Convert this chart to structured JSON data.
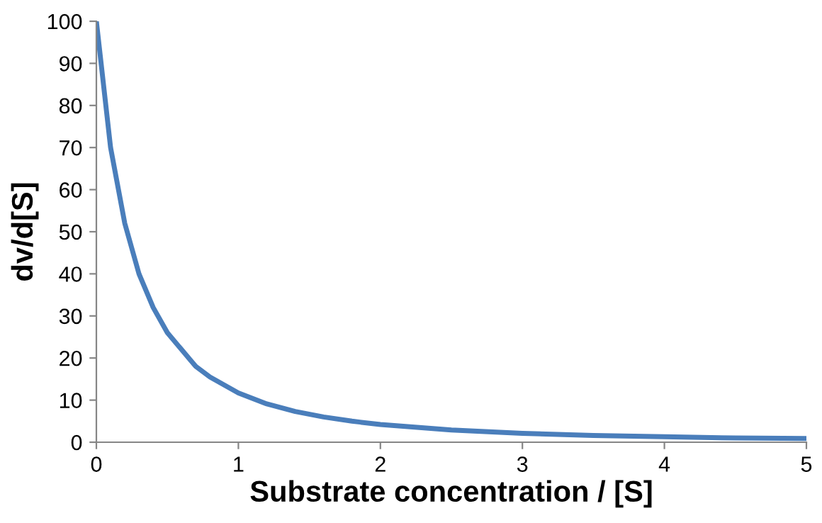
{
  "chart_data": {
    "type": "line",
    "xlabel": "Substrate concentration / [S]",
    "ylabel": "dv/d[S]",
    "x": [
      0,
      0.1,
      0.2,
      0.3,
      0.4,
      0.5,
      0.6,
      0.7,
      0.8,
      1,
      1.2,
      1.4,
      1.6,
      1.8,
      2,
      2.5,
      3,
      3.5,
      4,
      4.5,
      5
    ],
    "series": [
      {
        "color": "#4a7ebb",
        "values": [
          100,
          70,
          52,
          40,
          32,
          26,
          22,
          18,
          15.5,
          11.7,
          9.1,
          7.3,
          6,
          5,
          4.2,
          2.9,
          2.1,
          1.6,
          1.3,
          1,
          0.9
        ]
      }
    ],
    "xlim": [
      0,
      5
    ],
    "xticks": [
      0,
      1,
      2,
      3,
      4,
      5
    ],
    "ylim": [
      0,
      100
    ],
    "yticks": [
      0,
      10,
      20,
      30,
      40,
      50,
      60,
      70,
      80,
      90,
      100
    ],
    "grid": false,
    "legend": false,
    "marker": "none",
    "line_style": "solid"
  }
}
